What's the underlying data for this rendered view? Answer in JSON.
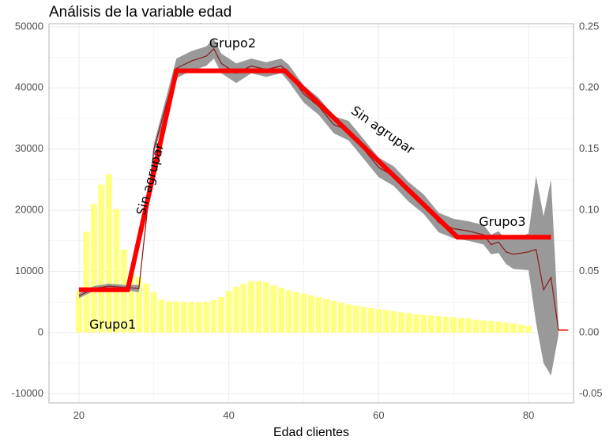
{
  "chart_data": {
    "type": "bar",
    "title": "Análisis de la variable edad",
    "xlabel": "Edad clientes",
    "ylabel": "",
    "xlim": [
      16,
      86
    ],
    "ylim": [
      -11500,
      50500
    ],
    "y2lim": [
      -0.0575,
      0.2525
    ],
    "x_ticks": [
      20,
      40,
      60,
      80
    ],
    "y_ticks": [
      -10000,
      0,
      10000,
      20000,
      30000,
      40000,
      50000
    ],
    "y2_ticks": [
      -0.05,
      0.0,
      0.05,
      0.1,
      0.15,
      0.2,
      0.25
    ],
    "y_tick_labels": [
      "-10000",
      "0",
      "10000",
      "20000",
      "30000",
      "40000",
      "50000"
    ],
    "y2_tick_labels": [
      "-0.05",
      "0.00",
      "0.05",
      "0.10",
      "0.15",
      "0.20",
      "0.25"
    ],
    "grid": true,
    "colors": {
      "bars": "#ffff80",
      "band": "#999999",
      "rate_line": "#8b1a1a",
      "group_line": "#ff0000",
      "grid": "#ebebeb",
      "panel_border": "#b3b3b3"
    },
    "series": [
      {
        "kind": "bar",
        "axis": "left",
        "x": [
          20,
          21,
          22,
          23,
          24,
          25,
          26,
          27,
          28,
          29,
          30,
          31,
          32,
          33,
          34,
          35,
          36,
          37,
          38,
          39,
          40,
          41,
          42,
          43,
          44,
          45,
          46,
          47,
          48,
          49,
          50,
          51,
          52,
          53,
          54,
          55,
          56,
          57,
          58,
          59,
          60,
          61,
          62,
          63,
          64,
          65,
          66,
          67,
          68,
          69,
          70,
          71,
          72,
          73,
          74,
          75,
          76,
          77,
          78,
          79,
          80
        ],
        "values": [
          6800,
          16500,
          21000,
          24200,
          25900,
          20200,
          13600,
          9700,
          9100,
          8000,
          6600,
          5400,
          5100,
          5100,
          5000,
          5000,
          5000,
          5000,
          5300,
          5800,
          6800,
          7500,
          8000,
          8400,
          8400,
          8200,
          7700,
          7300,
          6900,
          6600,
          6400,
          6100,
          5800,
          5500,
          5200,
          4900,
          4600,
          4400,
          4200,
          4000,
          3800,
          3700,
          3500,
          3300,
          3200,
          3000,
          2900,
          2800,
          2700,
          2600,
          2500,
          2400,
          2300,
          2100,
          2000,
          1900,
          1800,
          1600,
          1500,
          1300,
          1100
        ]
      },
      {
        "kind": "line_band",
        "axis": "right",
        "x": [
          20,
          22,
          24,
          26,
          28,
          30,
          33,
          35,
          37,
          38,
          39,
          41,
          43,
          45,
          47,
          48,
          50,
          52,
          54,
          56,
          58,
          60,
          62,
          64,
          66,
          68,
          70,
          72,
          74,
          75,
          76,
          77,
          78,
          80,
          81,
          82,
          83,
          84
        ],
        "values": [
          0.03,
          0.036,
          0.038,
          0.037,
          0.036,
          0.15,
          0.216,
          0.222,
          0.226,
          0.232,
          0.22,
          0.212,
          0.218,
          0.215,
          0.218,
          0.212,
          0.195,
          0.185,
          0.17,
          0.165,
          0.15,
          0.135,
          0.128,
          0.115,
          0.105,
          0.09,
          0.085,
          0.083,
          0.08,
          0.072,
          0.074,
          0.066,
          0.064,
          0.066,
          0.068,
          0.035,
          0.045,
          0.002
        ],
        "band_half_width": [
          0.002,
          0.002,
          0.002,
          0.002,
          0.003,
          0.004,
          0.008,
          0.008,
          0.008,
          0.008,
          0.008,
          0.008,
          0.006,
          0.006,
          0.006,
          0.007,
          0.007,
          0.007,
          0.007,
          0.008,
          0.008,
          0.008,
          0.008,
          0.008,
          0.008,
          0.008,
          0.008,
          0.008,
          0.008,
          0.008,
          0.009,
          0.01,
          0.012,
          0.015,
          0.06,
          0.06,
          0.08,
          0.004
        ]
      },
      {
        "kind": "group_line",
        "axis": "right",
        "x": [
          20,
          26.5,
          33,
          47.5,
          70.5,
          83
        ],
        "values": [
          0.035,
          0.035,
          0.214,
          0.214,
          0.078,
          0.078
        ]
      }
    ],
    "annotations": [
      {
        "text": "Grupo1",
        "x": 24.5,
        "y": 0.006,
        "rotate": 0
      },
      {
        "text": "Grupo2",
        "x": 40.5,
        "y": 0.236,
        "rotate": 0
      },
      {
        "text": "Grupo3",
        "x": 76.5,
        "y": 0.09,
        "rotate": 0
      },
      {
        "text": "Sin agrupar",
        "x": 29.6,
        "y": 0.125,
        "rotate": -75
      },
      {
        "text": "Sin agrupar",
        "x": 60.5,
        "y": 0.165,
        "rotate": 35
      }
    ]
  }
}
